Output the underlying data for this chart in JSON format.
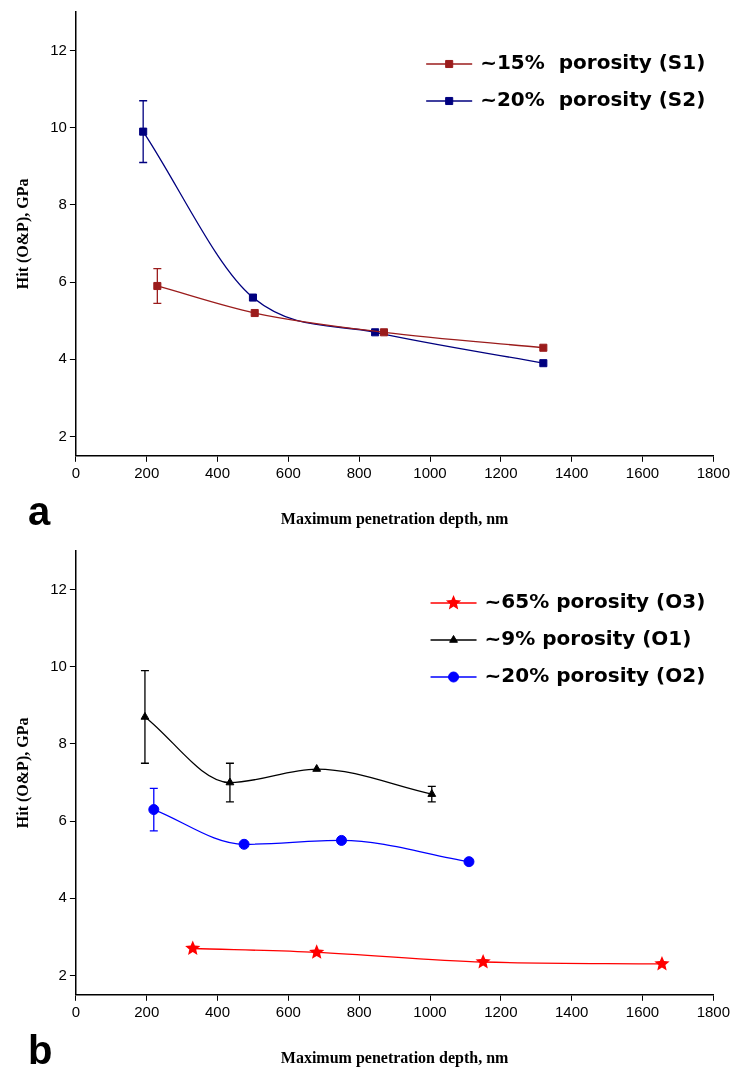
{
  "chart_data": [
    {
      "type": "line",
      "xlabel": "Maximum penetration depth, nm",
      "ylabel": "Hit (O&P), GPa",
      "annotations": [
        "a"
      ],
      "xlim": [
        0,
        1800
      ],
      "xticks": [
        0,
        200,
        400,
        600,
        800,
        1000,
        1200,
        1400,
        1600,
        1800
      ],
      "ylim": [
        1.5,
        13
      ],
      "yticks": [
        2,
        4,
        6,
        8,
        10,
        12
      ],
      "grid": false,
      "legend": "top right",
      "series": [
        {
          "name": "~15%  porosity (S1)",
          "color": "#9b1c1c",
          "marker": "square",
          "x": [
            230,
            505,
            870,
            1320
          ],
          "values": [
            5.9,
            5.2,
            4.7,
            4.3
          ],
          "errors": [
            0.45,
            null,
            null,
            null
          ]
        },
        {
          "name": "~20%  porosity (S2)",
          "color": "#00007f",
          "marker": "square",
          "x": [
            190,
            500,
            845,
            1320
          ],
          "values": [
            9.9,
            5.6,
            4.7,
            3.9
          ],
          "errors": [
            0.8,
            null,
            null,
            null
          ]
        }
      ]
    },
    {
      "type": "line",
      "xlabel": "Maximum penetration depth, nm",
      "ylabel": "Hit (O&P), GPa",
      "annotations": [
        "b"
      ],
      "xlim": [
        0,
        1800
      ],
      "xticks": [
        0,
        200,
        400,
        600,
        800,
        1000,
        1200,
        1400,
        1600,
        1800
      ],
      "ylim": [
        1.5,
        13
      ],
      "yticks": [
        2,
        4,
        6,
        8,
        10,
        12
      ],
      "grid": false,
      "legend": "top right",
      "series": [
        {
          "name": "~65% porosity (O3)",
          "color": "#ff0000",
          "marker": "star",
          "x": [
            330,
            680,
            1150,
            1655
          ],
          "values": [
            2.7,
            2.6,
            2.35,
            2.3
          ]
        },
        {
          "name": "~9% porosity (O1)",
          "color": "#000000",
          "marker": "triangle",
          "x": [
            195,
            435,
            680,
            1005
          ],
          "values": [
            8.7,
            7.0,
            7.35,
            6.7
          ],
          "errors": [
            1.2,
            0.5,
            null,
            0.2
          ]
        },
        {
          "name": "~20% porosity (O2)",
          "color": "#0000ff",
          "marker": "circle",
          "x": [
            220,
            475,
            750,
            1110
          ],
          "values": [
            6.3,
            5.4,
            5.5,
            4.95
          ],
          "errors": [
            0.55,
            null,
            null,
            null
          ]
        }
      ]
    }
  ]
}
